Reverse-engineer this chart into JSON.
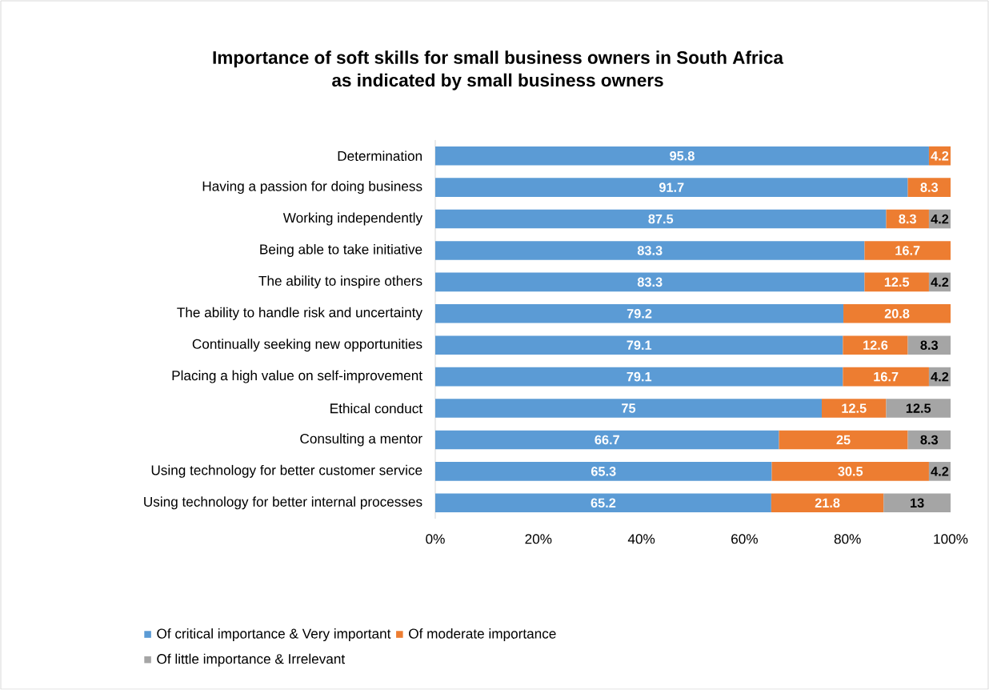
{
  "chart_data": {
    "type": "bar",
    "orientation": "horizontal",
    "stacked": true,
    "title": "Importance of soft skills for small business owners in South Africa\nas indicated by small business owners",
    "categories": [
      "Determination",
      "Having a passion for doing business",
      "Working independently",
      "Being able to take initiative",
      "The ability to inspire others",
      "The ability to handle risk and uncertainty",
      "Continually seeking new opportunities",
      "Placing a high value on self-improvement",
      "Ethical conduct",
      "Consulting a mentor",
      "Using technology for better customer service",
      "Using technology for better internal processes"
    ],
    "series": [
      {
        "name": "Of critical importance & Very important",
        "color": "#5b9bd5",
        "values": [
          95.8,
          91.7,
          87.5,
          83.3,
          83.3,
          79.2,
          79.1,
          79.1,
          75,
          66.7,
          65.3,
          65.2
        ]
      },
      {
        "name": "Of moderate importance",
        "color": "#ed7d31",
        "values": [
          4.2,
          8.3,
          8.3,
          16.7,
          12.5,
          20.8,
          12.6,
          16.7,
          12.5,
          25,
          30.5,
          21.8
        ]
      },
      {
        "name": "Of little importance & Irrelevant",
        "color": "#a5a5a5",
        "values": [
          null,
          null,
          4.2,
          null,
          4.2,
          null,
          8.3,
          4.2,
          12.5,
          8.3,
          4.2,
          13
        ]
      }
    ],
    "xlim": [
      0,
      100
    ],
    "xticks": [
      {
        "value": 0,
        "label": "0%"
      },
      {
        "value": 20,
        "label": "20%"
      },
      {
        "value": 40,
        "label": "40%"
      },
      {
        "value": 60,
        "label": "60%"
      },
      {
        "value": 80,
        "label": "80%"
      },
      {
        "value": 100,
        "label": "100%"
      }
    ],
    "data_labels": true,
    "legend": "bottom",
    "grid": false
  }
}
